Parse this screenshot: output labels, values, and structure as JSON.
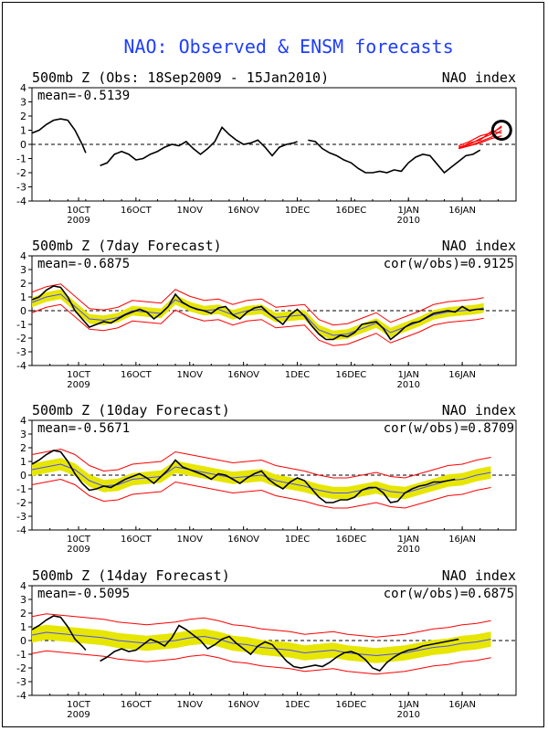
{
  "figure": {
    "title": "NAO: Observed & ENSM forecasts",
    "title_color": "#1f3dff",
    "obs_color": "#000000",
    "forecast_color": "#ff0000",
    "ensemble_color": "#e6e600",
    "mean_color": "#4d4dff"
  },
  "x_ticks": [
    {
      "label": "10CT",
      "sub": "2009"
    },
    {
      "label": "16OCT",
      "sub": ""
    },
    {
      "label": "1NOV",
      "sub": ""
    },
    {
      "label": "16NOV",
      "sub": ""
    },
    {
      "label": "1DEC",
      "sub": ""
    },
    {
      "label": "16DEC",
      "sub": ""
    },
    {
      "label": "1JAN",
      "sub": "2010"
    },
    {
      "label": "16JAN",
      "sub": ""
    }
  ],
  "chart_data": [
    {
      "type": "line",
      "title": "500mb Z (Obs: 18Sep2009 - 15Jan2010)",
      "right_label": "NAO index",
      "mean_text": "mean=-0.5139",
      "cor_text": "",
      "yticks": [
        "4",
        "3",
        "2",
        "1",
        "0",
        "-1",
        "-2",
        "-3",
        "-4"
      ],
      "ylim": [
        -4,
        4
      ],
      "marker": {
        "x": 131,
        "y": 1.0,
        "shape": "circle"
      },
      "series": [
        {
          "name": "observed",
          "x": [
            0,
            2,
            4,
            6,
            8,
            10,
            12,
            14,
            15
          ],
          "y": [
            0.8,
            1.0,
            1.4,
            1.7,
            1.8,
            1.7,
            1.0,
            0.0,
            -0.6
          ]
        },
        {
          "name": "observed",
          "x": [
            19,
            21,
            23,
            25,
            27,
            29,
            31,
            33,
            35,
            37,
            39,
            41,
            43,
            45,
            47,
            49,
            51,
            53,
            55,
            57,
            59,
            61,
            63,
            65,
            67,
            69,
            71,
            73,
            74
          ],
          "y": [
            -1.5,
            -1.3,
            -0.7,
            -0.5,
            -0.7,
            -1.1,
            -1.0,
            -0.7,
            -0.5,
            -0.2,
            0.0,
            -0.1,
            0.2,
            -0.3,
            -0.7,
            -0.3,
            0.2,
            1.2,
            0.7,
            0.3,
            0.0,
            0.1,
            0.3,
            -0.2,
            -0.8,
            -0.2,
            0.0,
            0.1,
            0.2
          ]
        },
        {
          "name": "observed",
          "x": [
            77,
            79,
            81,
            83,
            85,
            87,
            89,
            91,
            93,
            95,
            97,
            99,
            101,
            103,
            105,
            107,
            109,
            111,
            113,
            115,
            117,
            119,
            121,
            123,
            125
          ],
          "y": [
            0.3,
            0.2,
            -0.3,
            -0.6,
            -0.8,
            -1.1,
            -1.3,
            -1.7,
            -2.0,
            -2.0,
            -1.9,
            -2.0,
            -1.8,
            -1.9,
            -1.3,
            -0.9,
            -0.7,
            -0.8,
            -1.4,
            -2.0,
            -1.6,
            -1.2,
            -0.8,
            -0.7,
            -0.4
          ]
        }
      ],
      "forecasts": [
        {
          "x": [
            119,
            122,
            125,
            128,
            131
          ],
          "y": [
            -0.2,
            -0.1,
            0.2,
            0.5,
            1.0
          ]
        },
        {
          "x": [
            119,
            122,
            125,
            128,
            131
          ],
          "y": [
            -0.2,
            0.0,
            0.4,
            0.7,
            1.3
          ]
        },
        {
          "x": [
            119,
            122,
            125,
            128,
            131
          ],
          "y": [
            -0.3,
            0.1,
            0.3,
            0.9,
            0.8
          ]
        },
        {
          "x": [
            119,
            122,
            125,
            128,
            131
          ],
          "y": [
            -0.1,
            0.2,
            0.6,
            0.8,
            1.2
          ]
        },
        {
          "x": [
            119,
            122,
            125,
            128,
            131
          ],
          "y": [
            -0.3,
            -0.1,
            0.1,
            0.4,
            0.6
          ]
        }
      ]
    },
    {
      "type": "line",
      "title": "500mb Z (7day Forecast)",
      "right_label": "NAO index",
      "mean_text": "mean=-0.6875",
      "cor_text": "cor(w/obs)=0.9125",
      "yticks": [
        "4",
        "3",
        "2",
        "1",
        "0",
        "-1",
        "-2",
        "-3",
        "-4"
      ],
      "ylim": [
        -4,
        4
      ],
      "series": [
        {
          "name": "observed",
          "x": [
            0,
            2,
            4,
            6,
            8,
            10,
            12,
            14,
            16,
            18,
            20,
            22,
            24,
            26,
            28,
            30,
            32,
            34,
            36,
            38,
            40,
            42,
            44,
            46,
            48,
            50,
            52,
            54,
            56,
            58,
            60,
            62,
            64,
            66,
            68,
            70,
            72,
            74,
            76,
            78,
            80,
            82,
            84,
            86,
            88,
            90,
            92,
            94,
            96,
            98,
            100,
            102,
            104,
            106,
            108,
            110,
            112,
            114,
            116,
            118,
            120,
            122,
            124,
            126
          ],
          "y": [
            0.8,
            1.0,
            1.5,
            1.8,
            1.7,
            1.0,
            0.0,
            -0.6,
            -1.2,
            -1.0,
            -0.8,
            -0.9,
            -0.6,
            -0.3,
            -0.1,
            0.1,
            -0.1,
            -0.6,
            -0.2,
            0.3,
            1.2,
            0.6,
            0.3,
            0.1,
            0.0,
            -0.2,
            0.2,
            0.3,
            -0.3,
            -0.6,
            -0.1,
            0.2,
            0.3,
            -0.2,
            -0.6,
            -1.0,
            -0.3,
            0.1,
            -0.4,
            -1.1,
            -1.7,
            -2.1,
            -2.1,
            -1.8,
            -1.9,
            -1.6,
            -1.0,
            -0.9,
            -0.8,
            -1.3,
            -2.1,
            -1.7,
            -1.2,
            -0.9,
            -0.8,
            -0.5,
            -0.2,
            -0.1,
            0.0,
            -0.1,
            0.3,
            0.0,
            0.1,
            0.1
          ]
        }
      ],
      "ensemble_mean": {
        "x": [
          0,
          4,
          8,
          12,
          16,
          20,
          24,
          28,
          32,
          36,
          40,
          44,
          48,
          52,
          56,
          60,
          64,
          68,
          72,
          76,
          80,
          84,
          88,
          92,
          96,
          100,
          104,
          108,
          112,
          116,
          120,
          124,
          126
        ],
        "y": [
          0.6,
          1.0,
          1.2,
          0.3,
          -0.6,
          -0.7,
          -0.5,
          0.0,
          -0.1,
          -0.2,
          0.8,
          0.3,
          0.0,
          0.1,
          -0.3,
          0.0,
          0.1,
          -0.5,
          -0.4,
          -0.3,
          -1.4,
          -1.8,
          -1.7,
          -1.3,
          -0.9,
          -1.6,
          -1.2,
          -0.8,
          -0.3,
          -0.1,
          0.0,
          0.1,
          0.2
        ]
      },
      "band_halfwidth": 0.35,
      "envelope_halfwidth": 0.75
    },
    {
      "type": "line",
      "title": "500mb Z (10day Forecast)",
      "right_label": "NAO index",
      "mean_text": "mean=-0.5671",
      "cor_text": "cor(w/obs)=0.8709",
      "yticks": [
        "4",
        "3",
        "2",
        "1",
        "0",
        "-1",
        "-2",
        "-3",
        "-4"
      ],
      "ylim": [
        -4,
        4
      ],
      "series": [
        {
          "name": "observed",
          "x": [
            0,
            2,
            4,
            6,
            8,
            10,
            12,
            14,
            16,
            18,
            20,
            22,
            24,
            26,
            28,
            30,
            32,
            34,
            36,
            38,
            40,
            42,
            44,
            46,
            48,
            50,
            52,
            54,
            56,
            58,
            60,
            62,
            64,
            66,
            68,
            70,
            72,
            74,
            76,
            78,
            80,
            82,
            84,
            86,
            88,
            90,
            92,
            94,
            96,
            98,
            100,
            102,
            104,
            106,
            108,
            110,
            112,
            114,
            116,
            118
          ],
          "y": [
            0.8,
            1.1,
            1.5,
            1.8,
            1.7,
            1.0,
            0.1,
            -0.6,
            -1.1,
            -1.0,
            -0.8,
            -0.9,
            -0.6,
            -0.3,
            -0.1,
            0.1,
            -0.2,
            -0.6,
            -0.1,
            0.4,
            1.1,
            0.6,
            0.4,
            0.2,
            0.0,
            -0.3,
            0.1,
            0.0,
            -0.3,
            -0.6,
            -0.2,
            0.1,
            0.3,
            -0.3,
            -0.7,
            -1.0,
            -0.5,
            -0.2,
            -0.4,
            -1.0,
            -1.6,
            -2.0,
            -2.0,
            -1.8,
            -1.8,
            -1.6,
            -1.1,
            -0.9,
            -0.9,
            -1.3,
            -2.0,
            -1.9,
            -1.3,
            -1.0,
            -0.8,
            -0.7,
            -0.5,
            -0.5,
            -0.4,
            -0.3
          ]
        }
      ],
      "ensemble_mean": {
        "x": [
          0,
          4,
          8,
          12,
          16,
          20,
          24,
          28,
          32,
          36,
          40,
          44,
          48,
          52,
          56,
          60,
          64,
          68,
          72,
          76,
          80,
          84,
          88,
          92,
          96,
          100,
          104,
          108,
          112,
          116,
          120,
          124,
          128
        ],
        "y": [
          0.4,
          0.6,
          0.8,
          0.4,
          -0.4,
          -0.8,
          -0.7,
          -0.3,
          -0.2,
          -0.1,
          0.6,
          0.4,
          0.2,
          0.0,
          -0.2,
          -0.1,
          0.0,
          -0.4,
          -0.6,
          -0.8,
          -1.1,
          -1.3,
          -1.3,
          -1.1,
          -0.9,
          -1.2,
          -1.3,
          -1.0,
          -0.7,
          -0.4,
          -0.3,
          0.0,
          0.2
        ]
      },
      "band_halfwidth": 0.45,
      "envelope_halfwidth": 1.1
    },
    {
      "type": "line",
      "title": "500mb Z (14day Forecast)",
      "right_label": "NAO index",
      "mean_text": "mean=-0.5095",
      "cor_text": "cor(w/obs)=0.6875",
      "yticks": [
        "4",
        "3",
        "2",
        "1",
        "0",
        "-1",
        "-2",
        "-3",
        "-4"
      ],
      "ylim": [
        -4,
        4
      ],
      "series": [
        {
          "name": "observed",
          "x": [
            0,
            2,
            4,
            6,
            8,
            10,
            12,
            14,
            15
          ],
          "y": [
            0.8,
            1.1,
            1.5,
            1.8,
            1.7,
            1.0,
            0.1,
            -0.4,
            -0.7
          ]
        },
        {
          "name": "observed",
          "x": [
            19,
            21,
            23,
            25,
            27,
            29,
            31,
            33,
            35,
            37,
            39,
            41,
            43,
            45,
            47,
            49,
            51,
            53,
            55,
            57,
            59,
            61,
            63,
            65,
            67,
            69,
            71,
            73,
            75,
            77,
            79,
            81,
            83,
            85,
            87,
            89,
            91,
            93,
            95,
            97,
            99,
            101,
            103,
            105,
            107,
            109,
            111,
            113,
            115,
            117,
            119
          ],
          "y": [
            -1.5,
            -1.2,
            -0.8,
            -0.6,
            -0.8,
            -0.7,
            -0.3,
            0.1,
            -0.1,
            -0.4,
            0.2,
            1.1,
            0.8,
            0.4,
            0.0,
            -0.6,
            -0.3,
            0.1,
            0.3,
            -0.2,
            -0.6,
            -1.0,
            -0.4,
            -0.1,
            -0.3,
            -0.9,
            -1.5,
            -1.9,
            -2.0,
            -1.9,
            -1.8,
            -1.9,
            -1.6,
            -1.2,
            -0.9,
            -0.8,
            -1.0,
            -1.4,
            -2.0,
            -2.2,
            -1.6,
            -1.2,
            -0.9,
            -0.7,
            -0.6,
            -0.4,
            -0.3,
            -0.2,
            -0.1,
            0.0,
            0.1
          ]
        }
      ],
      "ensemble_mean": {
        "x": [
          0,
          4,
          8,
          12,
          16,
          20,
          24,
          28,
          32,
          36,
          40,
          44,
          48,
          52,
          56,
          60,
          64,
          68,
          72,
          76,
          80,
          84,
          88,
          92,
          96,
          100,
          104,
          108,
          112,
          116,
          120,
          124,
          128
        ],
        "y": [
          0.4,
          0.6,
          0.5,
          0.4,
          0.3,
          0.2,
          0.0,
          -0.1,
          -0.2,
          -0.1,
          0.0,
          0.2,
          0.3,
          0.1,
          -0.2,
          -0.3,
          -0.5,
          -0.6,
          -0.7,
          -0.9,
          -0.8,
          -0.7,
          -0.9,
          -1.0,
          -1.1,
          -1.0,
          -0.9,
          -0.7,
          -0.5,
          -0.4,
          -0.2,
          -0.1,
          0.1
        ]
      },
      "band_halfwidth": 0.55,
      "envelope_halfwidth": 1.35
    }
  ]
}
